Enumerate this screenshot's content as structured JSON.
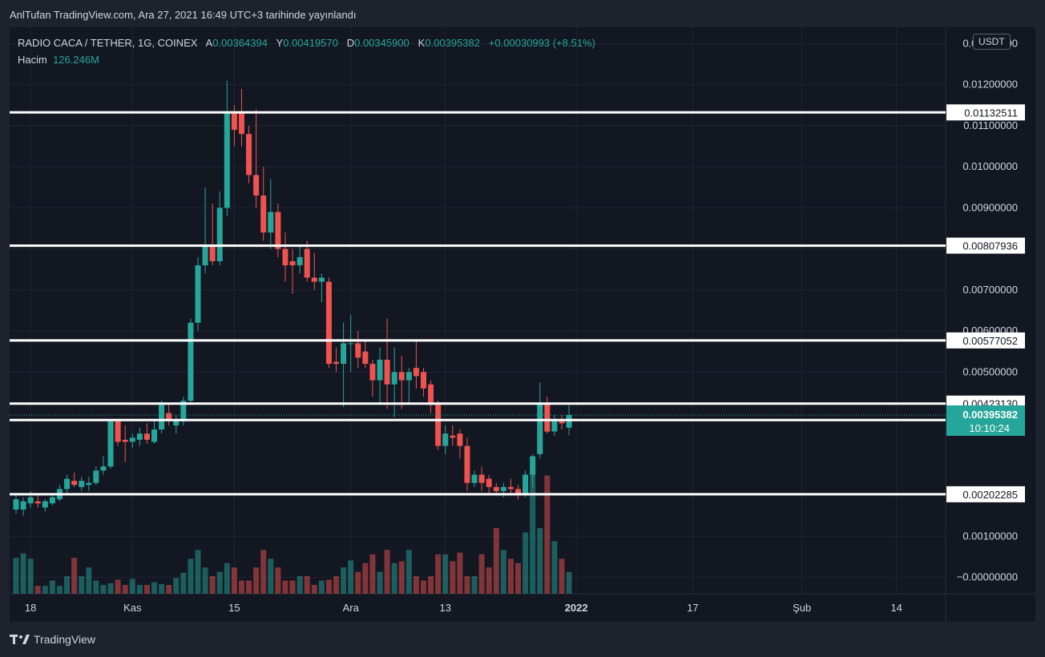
{
  "header": {
    "published": "AnlTufan TradingView.com, Ara 27, 2021 16:49 UTC+3 tarihinde yayınlandı"
  },
  "legend": {
    "symbol": "RADIO CACA / TETHER, 1G, COINEX",
    "open_label": "A",
    "open": "0.00364394",
    "high_label": "Y",
    "high": "0.00419570",
    "low_label": "D",
    "low": "0.00345900",
    "close_label": "K",
    "close": "0.00395382",
    "change": "+0.00030993 (+8.51%)",
    "volume_label": "Hacim",
    "volume": "126.246M"
  },
  "currency": "USDT",
  "footer": {
    "brand": "TradingView"
  },
  "colors": {
    "up": "#26a69a",
    "down": "#ef5350",
    "background": "#131722",
    "level": "#ffffff",
    "grid": "#1f2430"
  },
  "chart_data": {
    "type": "candlestick",
    "y_axis": {
      "min": -0.0004,
      "max": 0.0134,
      "ticks": [
        0.013,
        0.012,
        0.011,
        0.01,
        0.009,
        0.008,
        0.007,
        0.006,
        0.005,
        0.001,
        0.0
      ],
      "tick_labels": [
        "0.01300000",
        "0.01200000",
        "0.01100000",
        "0.01000000",
        "0.00900000",
        "0.00800000",
        "0.00700000",
        "0.00600000",
        "0.00500000",
        "0.00100000",
        "−0.00000000"
      ]
    },
    "x_axis": {
      "ticks": [
        {
          "label": "18",
          "index": 2
        },
        {
          "label": "Kas",
          "index": 16
        },
        {
          "label": "15",
          "index": 30
        },
        {
          "label": "Ara",
          "index": 46
        },
        {
          "label": "13",
          "index": 59
        },
        {
          "label": "2022",
          "index": 77
        },
        {
          "label": "17",
          "index": 93
        },
        {
          "label": "Şub",
          "index": 108
        },
        {
          "label": "14",
          "index": 121
        }
      ]
    },
    "price_levels": [
      {
        "value": 0.01132511,
        "label": "0.01132511"
      },
      {
        "value": 0.00807936,
        "label": "0.00807936"
      },
      {
        "value": 0.00577052,
        "label": "0.00577052"
      },
      {
        "value": 0.0042313,
        "label": "0.00423130"
      },
      {
        "value": 0.00382976,
        "label": "0.00382976"
      },
      {
        "value": 0.00202285,
        "label": "0.00202285"
      }
    ],
    "last_price": {
      "value": 0.00395382,
      "label": "0.00395382",
      "countdown": "10:10:24"
    },
    "candles": [
      [
        0.00165,
        0.002,
        0.00155,
        0.0019
      ],
      [
        0.00165,
        0.00195,
        0.0015,
        0.00185
      ],
      [
        0.0018,
        0.0021,
        0.0017,
        0.00195
      ],
      [
        0.00185,
        0.002,
        0.0017,
        0.0018
      ],
      [
        0.0017,
        0.0019,
        0.0016,
        0.00185
      ],
      [
        0.0018,
        0.00205,
        0.00175,
        0.00195
      ],
      [
        0.0019,
        0.00225,
        0.00185,
        0.00215
      ],
      [
        0.00215,
        0.0025,
        0.00205,
        0.0024
      ],
      [
        0.00235,
        0.00255,
        0.0022,
        0.00225
      ],
      [
        0.0022,
        0.00245,
        0.0021,
        0.00235
      ],
      [
        0.00225,
        0.00245,
        0.0021,
        0.0023
      ],
      [
        0.0023,
        0.0027,
        0.00225,
        0.0026
      ],
      [
        0.0026,
        0.00295,
        0.0025,
        0.0027
      ],
      [
        0.0027,
        0.00385,
        0.00265,
        0.0038
      ],
      [
        0.0038,
        0.00385,
        0.0032,
        0.0033
      ],
      [
        0.00335,
        0.0037,
        0.0028,
        0.0033
      ],
      [
        0.0033,
        0.0035,
        0.00315,
        0.0034
      ],
      [
        0.00335,
        0.00365,
        0.0032,
        0.0035
      ],
      [
        0.0035,
        0.00375,
        0.00325,
        0.00335
      ],
      [
        0.0033,
        0.00385,
        0.00325,
        0.0036
      ],
      [
        0.0036,
        0.0043,
        0.0035,
        0.0042
      ],
      [
        0.004,
        0.00425,
        0.0037,
        0.0038
      ],
      [
        0.0037,
        0.00395,
        0.0035,
        0.00385
      ],
      [
        0.0038,
        0.0044,
        0.0037,
        0.0043
      ],
      [
        0.0043,
        0.0063,
        0.0042,
        0.0062
      ],
      [
        0.0062,
        0.0078,
        0.006,
        0.0076
      ],
      [
        0.0076,
        0.0095,
        0.0074,
        0.0081
      ],
      [
        0.0081,
        0.0091,
        0.0076,
        0.0077
      ],
      [
        0.0077,
        0.0094,
        0.0076,
        0.009
      ],
      [
        0.009,
        0.0121,
        0.0088,
        0.0113
      ],
      [
        0.0113,
        0.0115,
        0.0105,
        0.0109
      ],
      [
        0.0113,
        0.0119,
        0.0105,
        0.0108
      ],
      [
        0.0108,
        0.011,
        0.0096,
        0.0098
      ],
      [
        0.0098,
        0.0114,
        0.009,
        0.0093
      ],
      [
        0.0093,
        0.01,
        0.0082,
        0.0084
      ],
      [
        0.0084,
        0.0097,
        0.008,
        0.0089
      ],
      [
        0.0089,
        0.0091,
        0.0078,
        0.008
      ],
      [
        0.008,
        0.0084,
        0.0072,
        0.0076
      ],
      [
        0.0077,
        0.008,
        0.0069,
        0.0076
      ],
      [
        0.0076,
        0.0081,
        0.0074,
        0.0078
      ],
      [
        0.008,
        0.0082,
        0.0072,
        0.0073
      ],
      [
        0.0073,
        0.0079,
        0.007,
        0.0072
      ],
      [
        0.0072,
        0.0074,
        0.0067,
        0.0073
      ],
      [
        0.0072,
        0.0073,
        0.0051,
        0.0052
      ],
      [
        0.00525,
        0.0056,
        0.005,
        0.0052
      ],
      [
        0.0052,
        0.0062,
        0.00415,
        0.0057
      ],
      [
        0.0057,
        0.0064,
        0.005,
        0.0057
      ],
      [
        0.0057,
        0.006,
        0.0051,
        0.00535
      ],
      [
        0.0055,
        0.0058,
        0.0051,
        0.0052
      ],
      [
        0.0052,
        0.0053,
        0.0044,
        0.0048
      ],
      [
        0.0048,
        0.0056,
        0.0042,
        0.0053
      ],
      [
        0.0053,
        0.0063,
        0.0041,
        0.0047
      ],
      [
        0.0047,
        0.0056,
        0.0039,
        0.005
      ],
      [
        0.005,
        0.0054,
        0.0041,
        0.0048
      ],
      [
        0.0048,
        0.0051,
        0.0042,
        0.005
      ],
      [
        0.0051,
        0.0058,
        0.0046,
        0.0049
      ],
      [
        0.005,
        0.0051,
        0.0044,
        0.0046
      ],
      [
        0.0047,
        0.0048,
        0.004,
        0.0042
      ],
      [
        0.0042,
        0.0043,
        0.0031,
        0.0032
      ],
      [
        0.0032,
        0.0037,
        0.003,
        0.0035
      ],
      [
        0.00345,
        0.0037,
        0.0032,
        0.0034
      ],
      [
        0.0035,
        0.0036,
        0.0029,
        0.0032
      ],
      [
        0.0032,
        0.0034,
        0.0021,
        0.0023
      ],
      [
        0.0023,
        0.0026,
        0.0022,
        0.0025
      ],
      [
        0.0025,
        0.0027,
        0.0021,
        0.0023
      ],
      [
        0.0024,
        0.0025,
        0.002,
        0.0022
      ],
      [
        0.0022,
        0.0023,
        0.002,
        0.0021
      ],
      [
        0.0021,
        0.0023,
        0.00195,
        0.0022
      ],
      [
        0.0022,
        0.0024,
        0.00205,
        0.00215
      ],
      [
        0.00215,
        0.00225,
        0.0019,
        0.002
      ],
      [
        0.002,
        0.0026,
        0.00195,
        0.0025
      ],
      [
        0.0025,
        0.003,
        0.0022,
        0.00295
      ],
      [
        0.003,
        0.00475,
        0.0029,
        0.00425
      ],
      [
        0.00425,
        0.0044,
        0.0035,
        0.00355
      ],
      [
        0.00355,
        0.00395,
        0.00345,
        0.00385
      ],
      [
        0.0038,
        0.00395,
        0.0036,
        0.00375
      ],
      [
        0.00364394,
        0.0041957,
        0.003459,
        0.00395382
      ]
    ],
    "volumes": [
      0.00082,
      0.00092,
      0.0008,
      0.00018,
      0.00018,
      0.0003,
      0.00018,
      0.0004,
      0.00082,
      0.0004,
      0.0006,
      0.0003,
      0.0002,
      0.00024,
      0.00032,
      0.0002,
      0.00034,
      0.0002,
      0.0002,
      0.00026,
      0.00022,
      0.0002,
      0.00036,
      0.00048,
      0.0008,
      0.001,
      0.0006,
      0.0004,
      0.0005,
      0.0007,
      0.0006,
      0.0003,
      0.0003,
      0.0006,
      0.001,
      0.0008,
      0.0006,
      0.0003,
      0.0003,
      0.0004,
      0.0004,
      0.0002,
      0.0003,
      0.00032,
      0.0004,
      0.0006,
      0.00076,
      0.0005,
      0.0007,
      0.0009,
      0.0005,
      0.001,
      0.0007,
      0.00074,
      0.001,
      0.0004,
      0.0003,
      0.0004,
      0.0009,
      0.0009,
      0.00074,
      0.00094,
      0.0004,
      0.0004,
      0.0009,
      0.0006,
      0.0015,
      0.001,
      0.0008,
      0.0007,
      0.0014,
      0.0028,
      0.0015,
      0.0027,
      0.0012,
      0.0008,
      0.0005
    ]
  }
}
